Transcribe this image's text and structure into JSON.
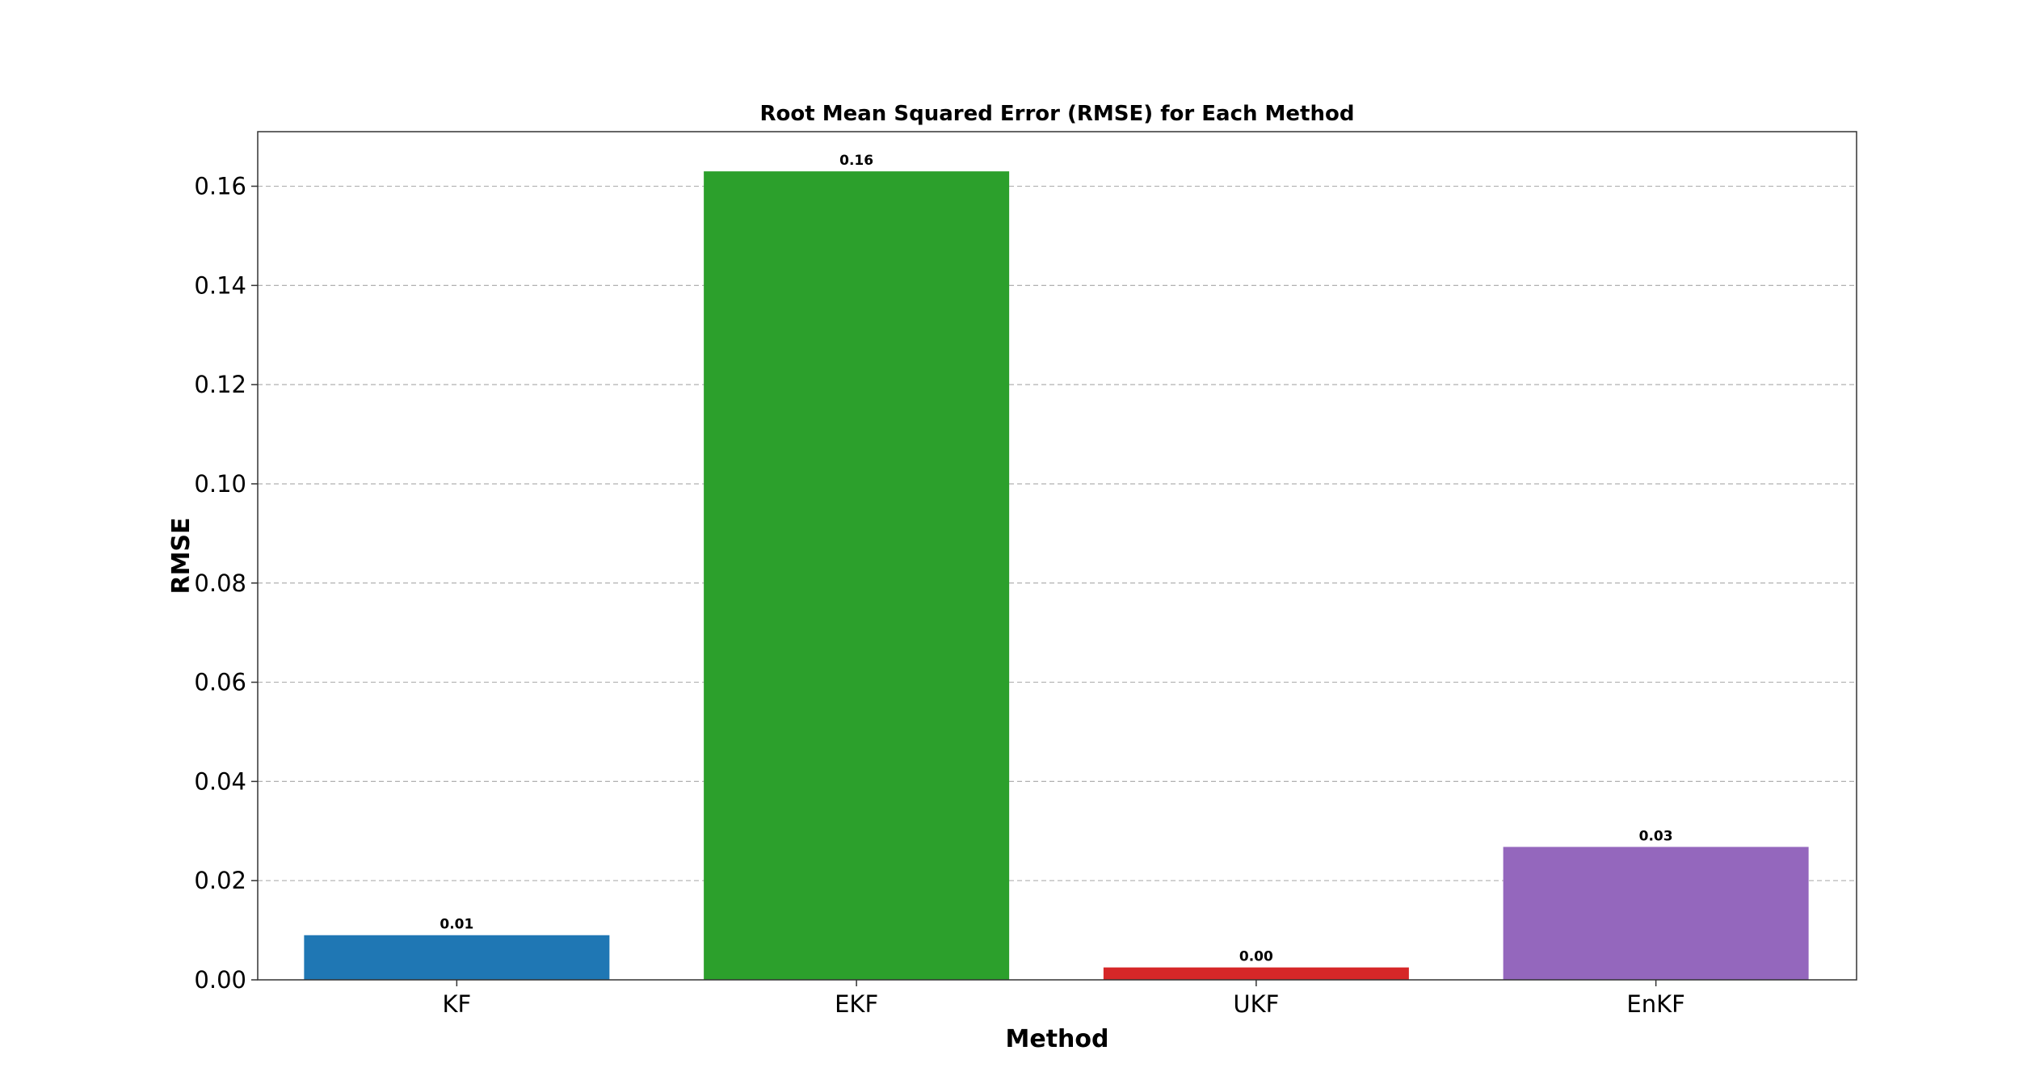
{
  "chart_data": {
    "type": "bar",
    "title": "Root Mean Squared Error (RMSE) for Each Method",
    "xlabel": "Method",
    "ylabel": "RMSE",
    "categories": [
      "KF",
      "EKF",
      "UKF",
      "EnKF"
    ],
    "values": [
      0.009,
      0.163,
      0.0025,
      0.0268
    ],
    "value_labels": [
      "0.01",
      "0.16",
      "0.00",
      "0.03"
    ],
    "colors": [
      "#1f77b4",
      "#2ca02c",
      "#d62728",
      "#9467bd"
    ],
    "ylim": [
      0,
      0.171
    ],
    "yticks": [
      0.0,
      0.02,
      0.04,
      0.06,
      0.08,
      0.1,
      0.12,
      0.14,
      0.16
    ],
    "ytick_labels": [
      "0.00",
      "0.02",
      "0.04",
      "0.06",
      "0.08",
      "0.10",
      "0.12",
      "0.14",
      "0.16"
    ],
    "grid": "y-dashed",
    "legend": "none"
  }
}
